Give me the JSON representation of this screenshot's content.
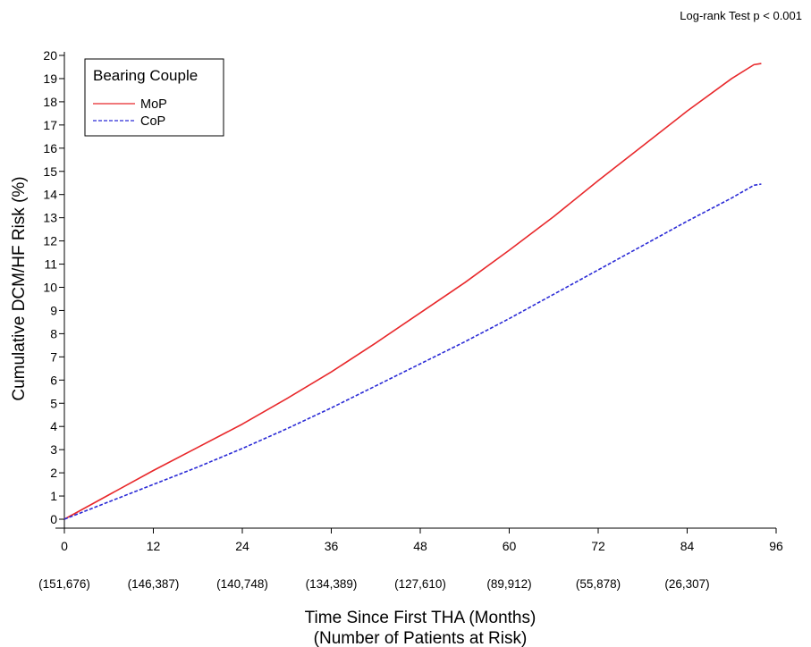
{
  "chart_data": {
    "type": "line",
    "annotation": "Log-rank Test p < 0.001",
    "xlabel": "Time Since First THA (Months)",
    "xlabel2": "(Number of Patients at Risk)",
    "ylabel": "Cumulative DCM/HF Risk (%)",
    "xlim": [
      0,
      96
    ],
    "ylim": [
      0,
      20
    ],
    "x_ticks": [
      0,
      12,
      24,
      36,
      48,
      60,
      72,
      84,
      96
    ],
    "x_tick_labels": [
      "0",
      "12",
      "24",
      "36",
      "48",
      "60",
      "72",
      "84",
      "96"
    ],
    "y_ticks": [
      0,
      1,
      2,
      3,
      4,
      5,
      6,
      7,
      8,
      9,
      10,
      11,
      12,
      13,
      14,
      15,
      16,
      17,
      18,
      19,
      20
    ],
    "y_tick_labels": [
      "0",
      "1",
      "2",
      "3",
      "4",
      "5",
      "6",
      "7",
      "8",
      "9",
      "10",
      "11",
      "12",
      "13",
      "14",
      "15",
      "16",
      "17",
      "18",
      "19",
      "20"
    ],
    "grid": false,
    "legend": {
      "title": "Bearing Couple",
      "placement": "top-left"
    },
    "patients_at_risk": [
      {
        "x": 0,
        "label": "(151,676)"
      },
      {
        "x": 12,
        "label": "(146,387)"
      },
      {
        "x": 24,
        "label": "(140,748)"
      },
      {
        "x": 36,
        "label": "(134,389)"
      },
      {
        "x": 48,
        "label": "(127,610)"
      },
      {
        "x": 60,
        "label": "(89,912)"
      },
      {
        "x": 72,
        "label": "(55,878)"
      },
      {
        "x": 84,
        "label": "(26,307)"
      }
    ],
    "series": [
      {
        "name": "MoP",
        "color": "#e8282b",
        "dash": "solid",
        "x": [
          0,
          6,
          12,
          18,
          24,
          30,
          36,
          42,
          48,
          54,
          60,
          66,
          72,
          78,
          84,
          90,
          93,
          94
        ],
        "y": [
          0,
          1.05,
          2.1,
          3.1,
          4.1,
          5.2,
          6.35,
          7.6,
          8.9,
          10.2,
          11.6,
          13.05,
          14.6,
          16.1,
          17.6,
          19.0,
          19.6,
          19.65
        ]
      },
      {
        "name": "CoP",
        "color": "#2b2bd6",
        "dash": "dashed",
        "x": [
          0,
          6,
          12,
          18,
          24,
          30,
          36,
          42,
          48,
          54,
          60,
          66,
          72,
          78,
          84,
          90,
          93,
          94
        ],
        "y": [
          0,
          0.75,
          1.5,
          2.25,
          3.05,
          3.9,
          4.8,
          5.75,
          6.7,
          7.65,
          8.65,
          9.7,
          10.75,
          11.8,
          12.85,
          13.85,
          14.4,
          14.45
        ]
      }
    ]
  }
}
